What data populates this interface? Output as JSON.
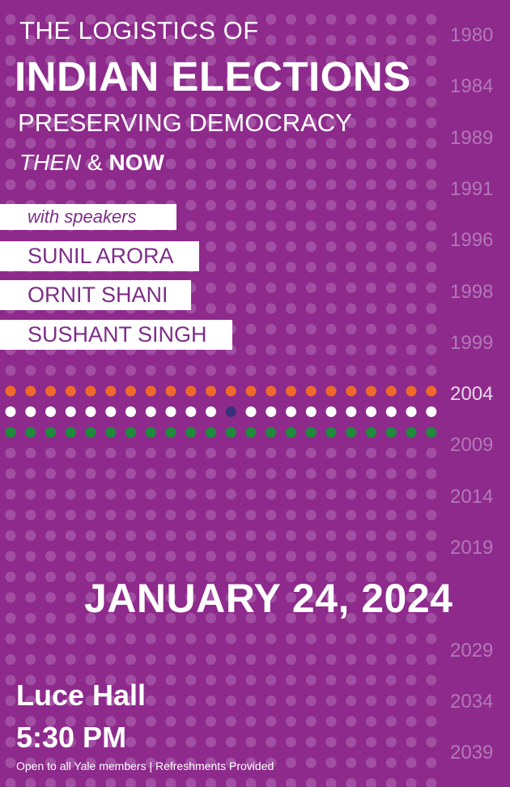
{
  "poster": {
    "title_line1": "THE LOGISTICS OF",
    "title_line2": "INDIAN ELECTIONS",
    "subtitle": "PRESERVING DEMOCRACY",
    "tagline_then": "THEN",
    "tagline_amp": " & ",
    "tagline_now": "NOW",
    "speakers_intro": "with speakers",
    "speakers": [
      "SUNIL ARORA",
      "ORNIT SHANI",
      "SUSHANT SINGH"
    ],
    "date": "JANUARY 24, 2024",
    "location": "Luce Hall",
    "time": "5:30 PM",
    "footer": "Open to all Yale members | Refreshments Provided"
  },
  "years": [
    "1980",
    "1984",
    "1989",
    "1991",
    "1996",
    "1998",
    "1999",
    "2004",
    "2009",
    "2014",
    "2019",
    "2024",
    "2029",
    "2034",
    "2039"
  ],
  "highlight_year": "2004",
  "colors": {
    "background": "#8e2a8c",
    "dot_faint": "#a24fa3",
    "saffron": "#ef6a2a",
    "white": "#ffffff",
    "green": "#1e8a3c",
    "navy": "#3a2f7a",
    "year_text": "#b278b7",
    "speaker_text": "#7d2d88"
  },
  "icons": [
    "dot-grid-pattern",
    "tricolor-dot-flag"
  ]
}
